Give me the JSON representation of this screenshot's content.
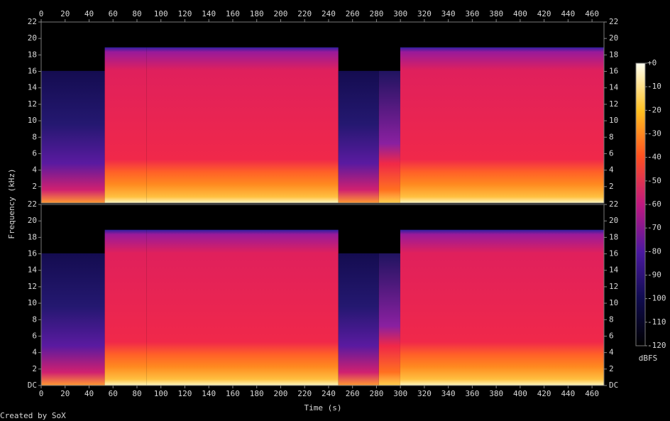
{
  "chart_data": {
    "type": "spectrogram",
    "xlabel": "Time (s)",
    "ylabel": "Frequency (kHz)",
    "xlim": [
      0,
      470
    ],
    "xticks": [
      0,
      20,
      40,
      60,
      80,
      100,
      120,
      140,
      160,
      180,
      200,
      220,
      240,
      260,
      280,
      300,
      320,
      340,
      360,
      380,
      400,
      420,
      440,
      460
    ],
    "panels": [
      {
        "ylim": [
          0,
          22
        ],
        "yticks": [
          2,
          4,
          6,
          8,
          10,
          12,
          14,
          16,
          18,
          20,
          22
        ]
      },
      {
        "ylim": [
          0,
          22
        ],
        "yticks": [
          {
            "value": 0,
            "label": "DC"
          },
          2,
          4,
          6,
          8,
          10,
          12,
          14,
          16,
          18,
          20,
          22
        ]
      }
    ],
    "colorbar": {
      "label": "dBFS",
      "lim": [
        -120,
        0
      ],
      "ticks": [
        {
          "value": 0,
          "label": "+0"
        },
        -10,
        -20,
        -30,
        -40,
        -50,
        -60,
        -70,
        -80,
        -90,
        -100,
        -110,
        -120
      ]
    }
  },
  "credit": "Created by SoX"
}
